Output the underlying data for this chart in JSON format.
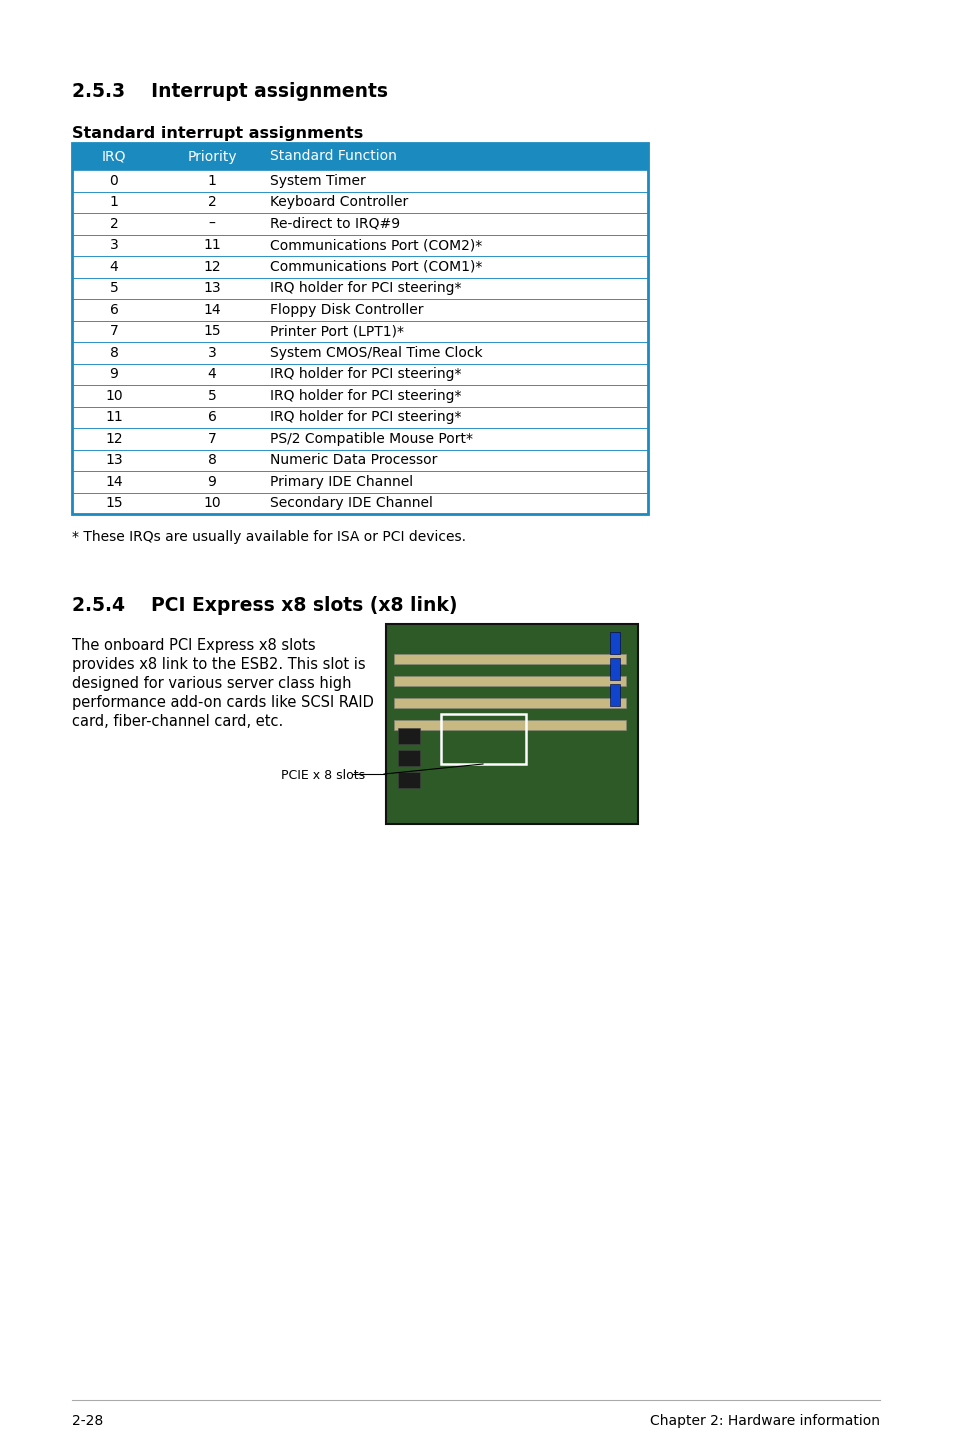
{
  "page_bg": "#ffffff",
  "section_253_title": "2.5.3    Interrupt assignments",
  "table_subtitle": "Standard interrupt assignments",
  "table_header_bg": "#1b8bbf",
  "table_header_color": "#ffffff",
  "table_header": [
    "IRQ",
    "Priority",
    "Standard Function"
  ],
  "table_rows": [
    [
      "0",
      "1",
      "System Timer"
    ],
    [
      "1",
      "2",
      "Keyboard Controller"
    ],
    [
      "2",
      "–",
      "Re-direct to IRQ#9"
    ],
    [
      "3",
      "11",
      "Communications Port (COM2)*"
    ],
    [
      "4",
      "12",
      "Communications Port (COM1)*"
    ],
    [
      "5",
      "13",
      "IRQ holder for PCI steering*"
    ],
    [
      "6",
      "14",
      "Floppy Disk Controller"
    ],
    [
      "7",
      "15",
      "Printer Port (LPT1)*"
    ],
    [
      "8",
      "3",
      "System CMOS/Real Time Clock"
    ],
    [
      "9",
      "4",
      "IRQ holder for PCI steering*"
    ],
    [
      "10",
      "5",
      "IRQ holder for PCI steering*"
    ],
    [
      "11",
      "6",
      "IRQ holder for PCI steering*"
    ],
    [
      "12",
      "7",
      "PS/2 Compatible Mouse Port*"
    ],
    [
      "13",
      "8",
      "Numeric Data Processor"
    ],
    [
      "14",
      "9",
      "Primary IDE Channel"
    ],
    [
      "15",
      "10",
      "Secondary IDE Channel"
    ]
  ],
  "table_border_color": "#1b8bbf",
  "footnote": "* These IRQs are usually available for ISA or PCI devices.",
  "section_254_title": "2.5.4    PCI Express x8 slots (x8 link)",
  "pcie_text_lines": [
    "The onboard PCI Express x8 slots",
    "provides x8 link to the ESB2. This slot is",
    "designed for various server class high",
    "performance add-on cards like SCSI RAID",
    "card, fiber-channel card, etc."
  ],
  "pcie_label": "PCIE x 8 slots",
  "footer_left": "2-28",
  "footer_right": "Chapter 2: Hardware information"
}
